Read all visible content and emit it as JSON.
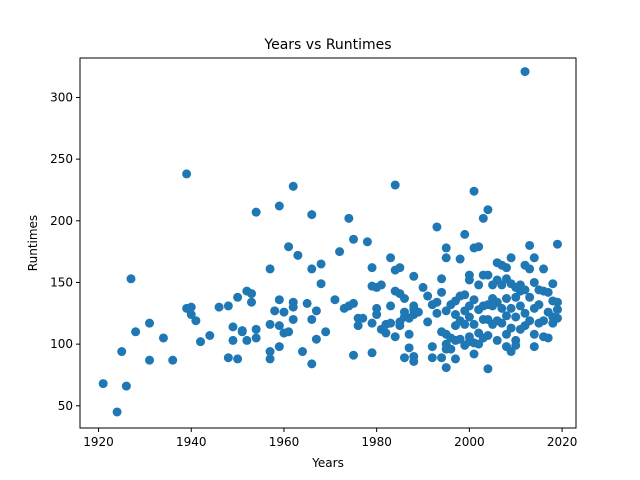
{
  "chart_data": {
    "type": "scatter",
    "title": "Years vs Runtimes",
    "xlabel": "Years",
    "ylabel": "Runtimes",
    "xlim": [
      1916,
      2023
    ],
    "ylim": [
      32,
      332
    ],
    "x_ticks": [
      1920,
      1940,
      1960,
      1980,
      2000,
      2020
    ],
    "y_ticks": [
      50,
      100,
      150,
      200,
      250,
      300
    ],
    "grid": false,
    "marker_color": "#1f77b4",
    "series": [
      {
        "points": [
          [
            1921,
            68
          ],
          [
            1924,
            45
          ],
          [
            1925,
            94
          ],
          [
            1926,
            66
          ],
          [
            1927,
            153
          ],
          [
            1928,
            110
          ],
          [
            1931,
            117
          ],
          [
            1931,
            87
          ],
          [
            1934,
            105
          ],
          [
            1936,
            87
          ],
          [
            1939,
            238
          ],
          [
            1939,
            129
          ],
          [
            1940,
            130
          ],
          [
            1940,
            124
          ],
          [
            1941,
            119
          ],
          [
            1942,
            102
          ],
          [
            1944,
            107
          ],
          [
            1946,
            130
          ],
          [
            1948,
            89
          ],
          [
            1948,
            131
          ],
          [
            1949,
            114
          ],
          [
            1949,
            103
          ],
          [
            1950,
            138
          ],
          [
            1950,
            88
          ],
          [
            1951,
            110
          ],
          [
            1951,
            111
          ],
          [
            1952,
            143
          ],
          [
            1952,
            103
          ],
          [
            1953,
            141
          ],
          [
            1953,
            134
          ],
          [
            1954,
            207
          ],
          [
            1954,
            112
          ],
          [
            1954,
            105
          ],
          [
            1957,
            116
          ],
          [
            1957,
            161
          ],
          [
            1957,
            94
          ],
          [
            1957,
            88
          ],
          [
            1958,
            127
          ],
          [
            1959,
            212
          ],
          [
            1959,
            136
          ],
          [
            1959,
            115
          ],
          [
            1959,
            98
          ],
          [
            1960,
            126
          ],
          [
            1960,
            109
          ],
          [
            1961,
            179
          ],
          [
            1961,
            110
          ],
          [
            1962,
            228
          ],
          [
            1962,
            134
          ],
          [
            1962,
            130
          ],
          [
            1962,
            120
          ],
          [
            1963,
            172
          ],
          [
            1964,
            94
          ],
          [
            1965,
            133
          ],
          [
            1966,
            161
          ],
          [
            1966,
            205
          ],
          [
            1966,
            120
          ],
          [
            1966,
            84
          ],
          [
            1967,
            127
          ],
          [
            1967,
            104
          ],
          [
            1968,
            165
          ],
          [
            1968,
            149
          ],
          [
            1969,
            110
          ],
          [
            1971,
            136
          ],
          [
            1972,
            175
          ],
          [
            1973,
            129
          ],
          [
            1974,
            202
          ],
          [
            1974,
            131
          ],
          [
            1975,
            185
          ],
          [
            1975,
            133
          ],
          [
            1975,
            91
          ],
          [
            1976,
            121
          ],
          [
            1976,
            115
          ],
          [
            1977,
            121
          ],
          [
            1978,
            183
          ],
          [
            1979,
            162
          ],
          [
            1979,
            147
          ],
          [
            1979,
            117
          ],
          [
            1979,
            93
          ],
          [
            1980,
            146
          ],
          [
            1980,
            129
          ],
          [
            1980,
            124
          ],
          [
            1981,
            148
          ],
          [
            1981,
            112
          ],
          [
            1982,
            116
          ],
          [
            1982,
            109
          ],
          [
            1983,
            170
          ],
          [
            1983,
            131
          ],
          [
            1983,
            117
          ],
          [
            1984,
            229
          ],
          [
            1984,
            160
          ],
          [
            1984,
            143
          ],
          [
            1984,
            106
          ],
          [
            1985,
            162
          ],
          [
            1985,
            141
          ],
          [
            1985,
            118
          ],
          [
            1985,
            115
          ],
          [
            1986,
            137
          ],
          [
            1986,
            126
          ],
          [
            1986,
            122
          ],
          [
            1986,
            89
          ],
          [
            1987,
            121
          ],
          [
            1987,
            108
          ],
          [
            1987,
            97
          ],
          [
            1988,
            155
          ],
          [
            1988,
            131
          ],
          [
            1988,
            128
          ],
          [
            1988,
            124
          ],
          [
            1988,
            90
          ],
          [
            1988,
            86
          ],
          [
            1989,
            126
          ],
          [
            1990,
            146
          ],
          [
            1991,
            139
          ],
          [
            1991,
            118
          ],
          [
            1992,
            132
          ],
          [
            1992,
            98
          ],
          [
            1992,
            89
          ],
          [
            1993,
            195
          ],
          [
            1993,
            134
          ],
          [
            1993,
            125
          ],
          [
            1994,
            153
          ],
          [
            1994,
            142
          ],
          [
            1994,
            110
          ],
          [
            1994,
            89
          ],
          [
            1995,
            178
          ],
          [
            1995,
            170
          ],
          [
            1995,
            127
          ],
          [
            1995,
            108
          ],
          [
            1995,
            100
          ],
          [
            1995,
            96
          ],
          [
            1995,
            81
          ],
          [
            1996,
            132
          ],
          [
            1996,
            105
          ],
          [
            1996,
            96
          ],
          [
            1997,
            135
          ],
          [
            1997,
            124
          ],
          [
            1997,
            115
          ],
          [
            1997,
            103
          ],
          [
            1997,
            88
          ],
          [
            1998,
            169
          ],
          [
            1998,
            139
          ],
          [
            1998,
            119
          ],
          [
            1998,
            104
          ],
          [
            1999,
            189
          ],
          [
            1999,
            140
          ],
          [
            1999,
            127
          ],
          [
            1999,
            116
          ],
          [
            1999,
            99
          ],
          [
            2000,
            156
          ],
          [
            2000,
            152
          ],
          [
            2000,
            131
          ],
          [
            2000,
            122
          ],
          [
            2000,
            106
          ],
          [
            2000,
            102
          ],
          [
            2001,
            224
          ],
          [
            2001,
            178
          ],
          [
            2001,
            136
          ],
          [
            2001,
            116
          ],
          [
            2001,
            101
          ],
          [
            2001,
            92
          ],
          [
            2002,
            179
          ],
          [
            2002,
            148
          ],
          [
            2002,
            128
          ],
          [
            2002,
            109
          ],
          [
            2002,
            100
          ],
          [
            2003,
            202
          ],
          [
            2003,
            156
          ],
          [
            2003,
            131
          ],
          [
            2003,
            120
          ],
          [
            2003,
            105
          ],
          [
            2004,
            209
          ],
          [
            2004,
            156
          ],
          [
            2004,
            132
          ],
          [
            2004,
            120
          ],
          [
            2004,
            107
          ],
          [
            2004,
            80
          ],
          [
            2005,
            148
          ],
          [
            2005,
            137
          ],
          [
            2005,
            131
          ],
          [
            2005,
            116
          ],
          [
            2006,
            166
          ],
          [
            2006,
            152
          ],
          [
            2006,
            134
          ],
          [
            2006,
            119
          ],
          [
            2006,
            103
          ],
          [
            2007,
            164
          ],
          [
            2007,
            148
          ],
          [
            2007,
            129
          ],
          [
            2007,
            117
          ],
          [
            2008,
            162
          ],
          [
            2008,
            153
          ],
          [
            2008,
            137
          ],
          [
            2008,
            123
          ],
          [
            2008,
            108
          ],
          [
            2008,
            98
          ],
          [
            2009,
            170
          ],
          [
            2009,
            149
          ],
          [
            2009,
            129
          ],
          [
            2009,
            113
          ],
          [
            2009,
            94
          ],
          [
            2010,
            146
          ],
          [
            2010,
            138
          ],
          [
            2010,
            122
          ],
          [
            2010,
            103
          ],
          [
            2010,
            99
          ],
          [
            2011,
            148
          ],
          [
            2011,
            143
          ],
          [
            2011,
            131
          ],
          [
            2011,
            112
          ],
          [
            2012,
            321
          ],
          [
            2012,
            164
          ],
          [
            2012,
            144
          ],
          [
            2012,
            125
          ],
          [
            2012,
            115
          ],
          [
            2013,
            180
          ],
          [
            2013,
            161
          ],
          [
            2013,
            138
          ],
          [
            2013,
            119
          ],
          [
            2014,
            170
          ],
          [
            2014,
            150
          ],
          [
            2014,
            129
          ],
          [
            2014,
            108
          ],
          [
            2014,
            98
          ],
          [
            2015,
            144
          ],
          [
            2015,
            132
          ],
          [
            2015,
            117
          ],
          [
            2016,
            161
          ],
          [
            2016,
            143
          ],
          [
            2016,
            119
          ],
          [
            2016,
            106
          ],
          [
            2017,
            142
          ],
          [
            2017,
            126
          ],
          [
            2017,
            105
          ],
          [
            2018,
            149
          ],
          [
            2018,
            135
          ],
          [
            2018,
            122
          ],
          [
            2018,
            117
          ],
          [
            2019,
            181
          ],
          [
            2019,
            134
          ],
          [
            2019,
            128
          ],
          [
            2019,
            121
          ]
        ]
      }
    ]
  }
}
